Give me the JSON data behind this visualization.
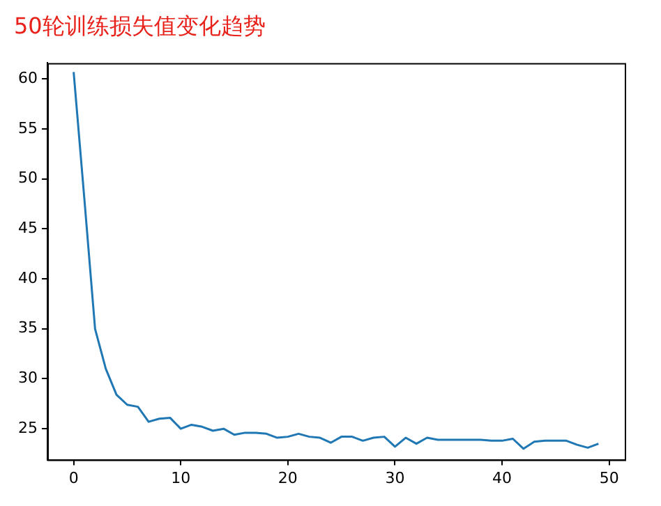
{
  "chart_data": {
    "type": "line",
    "title": "50轮训练损失值变化趋势",
    "x": [
      0,
      1,
      2,
      3,
      4,
      5,
      6,
      7,
      8,
      9,
      10,
      11,
      12,
      13,
      14,
      15,
      16,
      17,
      18,
      19,
      20,
      21,
      22,
      23,
      24,
      25,
      26,
      27,
      28,
      29,
      30,
      31,
      32,
      33,
      34,
      35,
      36,
      37,
      38,
      39,
      40,
      41,
      42,
      43,
      44,
      45,
      46,
      47,
      48,
      49
    ],
    "series": [
      {
        "color": "#1f77b4",
        "values": [
          60.7,
          48,
          35,
          31,
          28.4,
          27.4,
          27.2,
          25.7,
          26.0,
          26.1,
          25.0,
          25.4,
          25.2,
          24.8,
          25.0,
          24.4,
          24.6,
          24.6,
          24.5,
          24.1,
          24.2,
          24.5,
          24.2,
          24.1,
          23.6,
          24.2,
          24.2,
          23.8,
          24.1,
          24.2,
          23.2,
          24.1,
          23.5,
          24.1,
          23.9,
          23.9,
          23.9,
          23.9,
          23.9,
          23.8,
          23.8,
          24.0,
          23.0,
          23.7,
          23.8,
          23.8,
          23.8,
          23.4,
          23.1,
          23.5
        ]
      }
    ],
    "xlim": [
      -2.45,
      51.45
    ],
    "ylim": [
      21.9,
      61.6
    ],
    "xticks": [
      0,
      10,
      20,
      30,
      40,
      50
    ],
    "yticks": [
      25,
      30,
      35,
      40,
      45,
      50,
      55,
      60
    ],
    "grid": false,
    "legend": false,
    "marker": "none",
    "line_style": "solid"
  }
}
